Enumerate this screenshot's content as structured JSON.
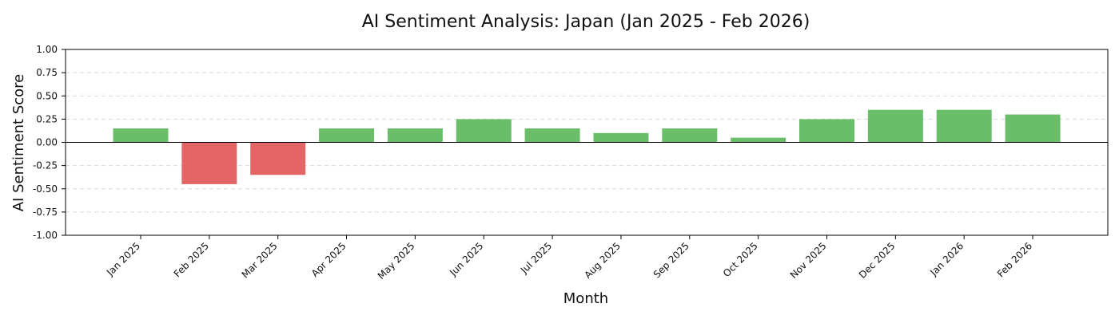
{
  "chart_data": {
    "type": "bar",
    "title": "AI Sentiment Analysis: Japan (Jan 2025 - Feb 2026)",
    "xlabel": "Month",
    "ylabel": "AI Sentiment Score",
    "ylim": [
      -1.0,
      1.0
    ],
    "yticks": [
      1.0,
      0.75,
      0.5,
      0.25,
      0.0,
      -0.25,
      -0.5,
      -0.75,
      -1.0
    ],
    "ytick_labels": [
      "1.00",
      "0.75",
      "0.50",
      "0.25",
      "0.00",
      "-0.25",
      "-0.50",
      "-0.75",
      "-1.00"
    ],
    "categories": [
      "Jan 2025",
      "Feb 2025",
      "Mar 2025",
      "Apr 2025",
      "May 2025",
      "Jun 2025",
      "Jul 2025",
      "Aug 2025",
      "Sep 2025",
      "Oct 2025",
      "Nov 2025",
      "Dec 2025",
      "Jan 2026",
      "Feb 2026"
    ],
    "values": [
      0.15,
      -0.45,
      -0.35,
      0.15,
      0.15,
      0.25,
      0.15,
      0.1,
      0.15,
      0.05,
      0.25,
      0.35,
      0.35,
      0.3
    ],
    "grid": "horizontal dashed",
    "colors": {
      "positive": "#6abe6a",
      "negative": "#e36565"
    }
  }
}
